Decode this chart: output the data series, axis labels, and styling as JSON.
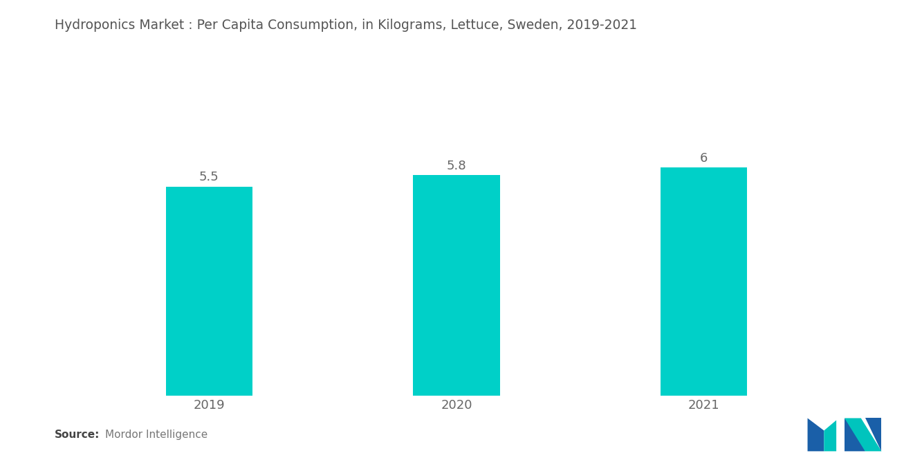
{
  "title": "Hydroponics Market : Per Capita Consumption, in Kilograms, Lettuce, Sweden, 2019-2021",
  "categories": [
    "2019",
    "2020",
    "2021"
  ],
  "values": [
    5.5,
    5.8,
    6.0
  ],
  "value_labels": [
    "5.5",
    "5.8",
    "6"
  ],
  "bar_color": "#00D0C8",
  "background_color": "#FFFFFF",
  "title_color": "#555555",
  "label_color": "#666666",
  "title_fontsize": 13.5,
  "label_fontsize": 13,
  "value_fontsize": 13,
  "source_fontsize": 11,
  "ylim": [
    0,
    7.5
  ],
  "bar_width": 0.35
}
